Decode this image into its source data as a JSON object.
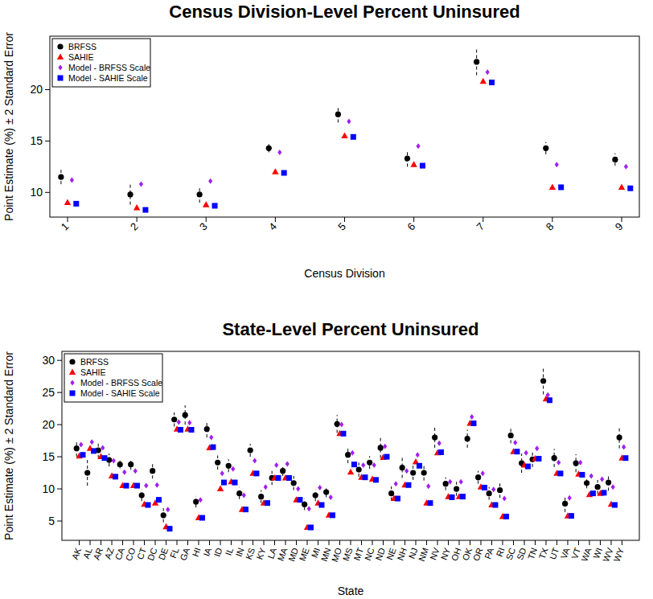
{
  "chart_data": [
    {
      "type": "scatter",
      "title": "Census Division-Level Percent Uninsured",
      "x_label": "Census Division",
      "y_label": "Point Estimate (%) ± 2 Standard Error",
      "categories": [
        "1",
        "2",
        "3",
        "4",
        "5",
        "6",
        "7",
        "8",
        "9"
      ],
      "ylim": [
        7.6,
        25.2
      ],
      "yticks": [
        10,
        15,
        20
      ],
      "legend": "top-left",
      "series": [
        {
          "name": "BRFSS",
          "color": "#000000",
          "marker": "circle",
          "values": [
            11.5,
            9.8,
            9.8,
            14.3,
            17.6,
            13.3,
            22.7,
            14.3,
            13.2
          ],
          "errors": [
            0.7,
            1.0,
            0.8,
            0.4,
            0.8,
            0.8,
            1.3,
            0.6,
            0.6
          ]
        },
        {
          "name": "SAHIE",
          "color": "#ff0000",
          "marker": "triangle",
          "values": [
            9.0,
            8.5,
            8.8,
            12.0,
            15.5,
            12.7,
            20.8,
            10.5,
            10.5
          ]
        },
        {
          "name": "Model - BRFSS Scale",
          "color": "#a020f0",
          "marker": "diamond",
          "values": [
            11.2,
            10.8,
            11.1,
            13.9,
            16.9,
            14.5,
            21.7,
            12.7,
            12.5
          ]
        },
        {
          "name": "Model - SAHIE Scale",
          "color": "#0000ff",
          "marker": "square",
          "values": [
            8.9,
            8.3,
            8.7,
            11.9,
            15.4,
            12.6,
            20.7,
            10.5,
            10.4
          ]
        }
      ]
    },
    {
      "type": "scatter",
      "title": "State-Level Percent Uninsured",
      "x_label": "State",
      "y_label": "Point Estimate (%) ± 2 Standard Error",
      "categories": [
        "AK",
        "AL",
        "AR",
        "AZ",
        "CA",
        "CO",
        "CT",
        "DC",
        "DE",
        "FL",
        "GA",
        "HI",
        "IA",
        "ID",
        "IL",
        "IN",
        "KS",
        "KY",
        "LA",
        "MA",
        "MD",
        "ME",
        "MI",
        "MN",
        "MO",
        "MS",
        "MT",
        "NC",
        "ND",
        "NE",
        "NH",
        "NJ",
        "NM",
        "NV",
        "NY",
        "OH",
        "OK",
        "OR",
        "PA",
        "RI",
        "SC",
        "SD",
        "TN",
        "TX",
        "UT",
        "VA",
        "VT",
        "WA",
        "WI",
        "WV",
        "WY"
      ],
      "ylim": [
        2,
        31.4
      ],
      "yticks": [
        5,
        10,
        15,
        20,
        25,
        30
      ],
      "legend": "top-left",
      "series": [
        {
          "name": "BRFSS",
          "color": "#000000",
          "marker": "circle",
          "values": [
            16.3,
            12.5,
            16.0,
            14.5,
            13.8,
            13.8,
            9.0,
            12.8,
            5.9,
            20.8,
            21.5,
            8.0,
            19.3,
            14.1,
            13.6,
            9.3,
            16.0,
            8.8,
            11.7,
            12.8,
            10.9,
            7.6,
            9.0,
            9.5,
            20.1,
            15.3,
            13.0,
            14.1,
            16.4,
            9.3,
            13.3,
            12.5,
            12.5,
            18.0,
            10.8,
            10.0,
            17.8,
            11.8,
            9.3,
            9.8,
            18.3,
            14.0,
            14.6,
            26.8,
            14.8,
            7.7,
            14.0,
            10.9,
            10.3,
            11.0,
            18.0
          ],
          "errors": [
            1.3,
            2.0,
            1.2,
            1.0,
            0.6,
            0.8,
            0.9,
            1.2,
            1.1,
            1.1,
            1.5,
            0.9,
            1.3,
            1.1,
            1.0,
            0.9,
            1.0,
            1.0,
            1.1,
            0.8,
            1.1,
            0.9,
            0.9,
            0.8,
            1.4,
            1.3,
            1.1,
            1.0,
            1.6,
            1.1,
            1.6,
            1.1,
            1.2,
            1.6,
            1.0,
            1.1,
            1.4,
            1.0,
            1.0,
            1.2,
            1.2,
            1.5,
            1.2,
            2.1,
            1.4,
            1.3,
            1.4,
            0.8,
            1.1,
            1.3,
            1.7
          ]
        },
        {
          "name": "SAHIE",
          "color": "#ff0000",
          "marker": "triangle",
          "values": [
            15.1,
            16.3,
            15.0,
            12.0,
            10.5,
            10.5,
            7.6,
            7.8,
            4.1,
            19.3,
            19.3,
            5.5,
            16.4,
            10.0,
            11.1,
            6.8,
            12.4,
            7.8,
            11.7,
            11.7,
            8.3,
            4.0,
            7.8,
            5.9,
            18.6,
            12.6,
            11.8,
            11.5,
            14.9,
            8.5,
            10.6,
            14.2,
            7.8,
            15.6,
            8.8,
            8.8,
            20.2,
            10.3,
            7.5,
            5.7,
            15.8,
            13.7,
            14.7,
            24.0,
            12.4,
            5.8,
            12.3,
            9.1,
            9.3,
            7.6,
            14.8
          ]
        },
        {
          "name": "Model - BRFSS Scale",
          "color": "#a020f0",
          "marker": "diamond",
          "values": [
            16.9,
            17.3,
            16.4,
            14.4,
            12.6,
            12.8,
            10.5,
            10.6,
            6.8,
            20.4,
            20.3,
            8.3,
            18.0,
            12.4,
            13.1,
            9.0,
            14.4,
            10.3,
            13.7,
            13.9,
            10.0,
            6.9,
            10.2,
            8.7,
            20.0,
            15.6,
            13.7,
            13.7,
            16.6,
            10.8,
            12.8,
            15.3,
            10.4,
            17.1,
            11.1,
            11.1,
            21.2,
            12.4,
            9.9,
            8.5,
            17.2,
            15.6,
            16.3,
            24.6,
            14.1,
            8.6,
            14.1,
            12.0,
            11.5,
            10.3,
            16.5
          ]
        },
        {
          "name": "Model - SAHIE Scale",
          "color": "#0000ff",
          "marker": "square",
          "values": [
            15.3,
            15.9,
            14.8,
            11.9,
            10.5,
            10.5,
            7.5,
            8.3,
            3.8,
            19.2,
            19.2,
            5.5,
            16.5,
            11.0,
            11.0,
            6.8,
            12.4,
            7.8,
            11.7,
            11.7,
            8.3,
            4.0,
            7.5,
            5.9,
            18.6,
            13.8,
            11.8,
            11.4,
            15.0,
            8.5,
            10.6,
            13.6,
            7.8,
            15.7,
            8.7,
            8.8,
            20.2,
            10.2,
            7.5,
            5.7,
            15.8,
            13.5,
            14.7,
            23.8,
            12.4,
            5.8,
            12.2,
            9.3,
            9.4,
            7.5,
            14.8
          ]
        }
      ]
    }
  ]
}
